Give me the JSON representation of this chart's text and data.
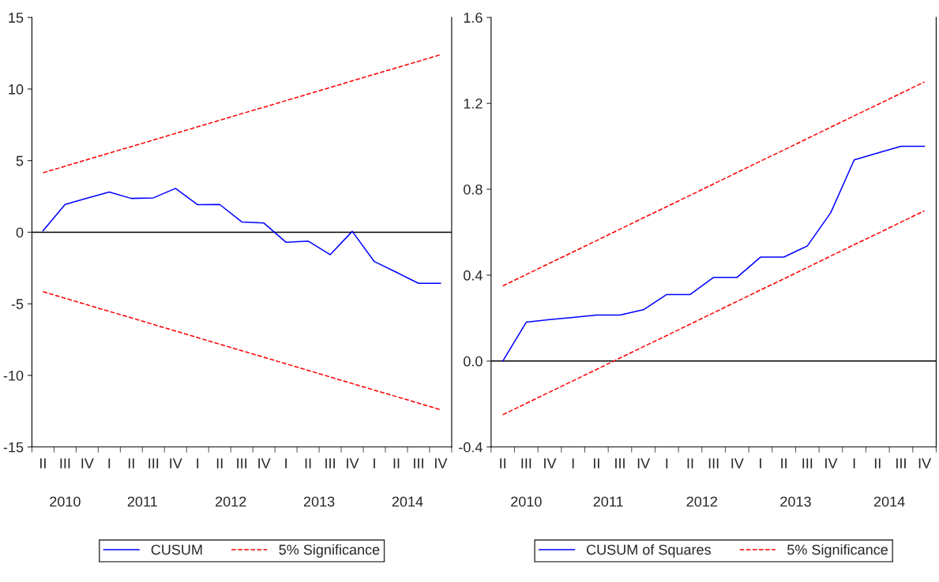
{
  "chart_data": [
    {
      "type": "line",
      "categories": [
        "II",
        "III",
        "IV",
        "I",
        "II",
        "III",
        "IV",
        "I",
        "II",
        "III",
        "IV",
        "I",
        "II",
        "III",
        "IV",
        "I",
        "II",
        "III",
        "IV"
      ],
      "series": [
        {
          "name": "CUSUM",
          "color": "#0000ff",
          "line_style": "solid",
          "values": [
            0.1,
            1.94,
            2.38,
            2.81,
            2.36,
            2.4,
            3.06,
            1.92,
            1.94,
            0.72,
            0.64,
            -0.7,
            -0.62,
            -1.57,
            0.06,
            -2.05,
            -2.8,
            -3.57,
            -3.57
          ]
        },
        {
          "name": "5% Significance",
          "color": "#ff0000",
          "line_style": "dashed",
          "values": [
            4.15,
            4.61,
            5.07,
            5.53,
            5.98,
            6.44,
            6.9,
            7.36,
            7.82,
            8.28,
            8.73,
            9.19,
            9.65,
            10.11,
            10.57,
            11.03,
            11.48,
            11.94,
            12.4
          ]
        },
        {
          "color": "#ff0000",
          "line_style": "dashed",
          "values": [
            -4.15,
            -4.61,
            -5.07,
            -5.53,
            -5.98,
            -6.44,
            -6.9,
            -7.36,
            -7.82,
            -8.28,
            -8.73,
            -9.19,
            -9.65,
            -10.11,
            -10.57,
            -11.03,
            -11.48,
            -11.94,
            -12.4
          ]
        }
      ],
      "ylim": [
        -15,
        15
      ],
      "yticks": [
        -15,
        -10,
        -5,
        0,
        5,
        10,
        15
      ],
      "ref_lines": [
        {
          "axis": "y",
          "value": 0,
          "color": "#000000"
        }
      ],
      "annotations": [
        "2010",
        "2011",
        "2012",
        "2013",
        "2014"
      ],
      "legend": "bottom",
      "grid": false
    },
    {
      "type": "line",
      "categories": [
        "II",
        "III",
        "IV",
        "I",
        "II",
        "III",
        "IV",
        "I",
        "II",
        "III",
        "IV",
        "I",
        "II",
        "III",
        "IV",
        "I",
        "II",
        "III",
        "IV"
      ],
      "series": [
        {
          "name": "CUSUM of Squares",
          "color": "#0000ff",
          "line_style": "solid",
          "values": [
            0,
            0.181,
            0.193,
            0.203,
            0.214,
            0.214,
            0.239,
            0.31,
            0.31,
            0.39,
            0.39,
            0.484,
            0.484,
            0.536,
            0.691,
            0.937,
            0.969,
            1.0,
            1.0
          ]
        },
        {
          "name": "5% Significance",
          "color": "#ff0000",
          "line_style": "dashed",
          "values": [
            0.35,
            0.403,
            0.456,
            0.508,
            0.561,
            0.614,
            0.667,
            0.719,
            0.772,
            0.825,
            0.878,
            0.931,
            0.983,
            1.036,
            1.089,
            1.142,
            1.194,
            1.247,
            1.3
          ]
        },
        {
          "color": "#ff0000",
          "line_style": "dashed",
          "values": [
            -0.25,
            -0.197,
            -0.144,
            -0.092,
            -0.039,
            0.014,
            0.067,
            0.119,
            0.172,
            0.225,
            0.278,
            0.331,
            0.383,
            0.436,
            0.489,
            0.542,
            0.594,
            0.647,
            0.7
          ]
        }
      ],
      "ylim": [
        -0.4,
        1.6
      ],
      "yticks": [
        {
          "value": -0.4,
          "label": "-0.4"
        },
        {
          "value": 0.0,
          "label": "0.0"
        },
        {
          "value": 0.4,
          "label": "0.4"
        },
        {
          "value": 0.8,
          "label": "0.8"
        },
        {
          "value": 1.2,
          "label": "1.2"
        },
        {
          "value": 1.6,
          "label": "1.6"
        }
      ],
      "ref_lines": [
        {
          "axis": "y",
          "value": 0,
          "color": "#000000"
        }
      ],
      "annotations": [
        "2010",
        "2011",
        "2012",
        "2013",
        "2014"
      ],
      "legend": "bottom",
      "grid": false
    }
  ]
}
